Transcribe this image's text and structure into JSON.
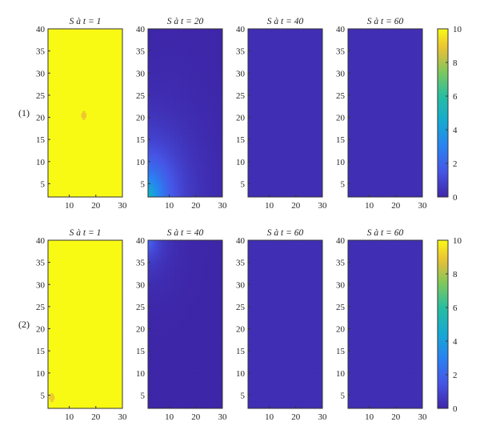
{
  "chart_data": [
    {
      "type": "heatmap",
      "row_label": "(1)",
      "colorbar": {
        "range": [
          0,
          10
        ],
        "ticks": [
          "0",
          "2",
          "4",
          "6",
          "8",
          "10"
        ],
        "colormap": "parula"
      },
      "panels": [
        {
          "title": "S à t = 1",
          "xlim": [
            2,
            30
          ],
          "ylim": [
            2,
            40
          ],
          "xticks": [
            "10",
            "20",
            "30"
          ],
          "yticks": [
            "5",
            "10",
            "15",
            "20",
            "25",
            "30",
            "35",
            "40"
          ],
          "field": {
            "kind": "uniform",
            "value": 10,
            "spots": [
              {
                "x": 15.5,
                "y": 20.5,
                "value": 9.0,
                "r": 0.9
              }
            ]
          }
        },
        {
          "title": "S à t = 20",
          "xlim": [
            2,
            30
          ],
          "ylim": [
            2,
            40
          ],
          "xticks": [
            "10",
            "20",
            "30"
          ],
          "yticks": [
            "5",
            "10",
            "15",
            "20",
            "25",
            "30",
            "35",
            "40"
          ],
          "field": {
            "kind": "decay_from_origin",
            "peak": 5.5,
            "decay": 7.5
          }
        },
        {
          "title": "S à t = 40",
          "xlim": [
            2,
            30
          ],
          "ylim": [
            2,
            40
          ],
          "xticks": [
            "10",
            "20",
            "30"
          ],
          "yticks": [
            "5",
            "10",
            "15",
            "20",
            "25",
            "30",
            "35",
            "40"
          ],
          "field": {
            "kind": "near_zero",
            "value": 0.3
          }
        },
        {
          "title": "S à t = 60",
          "xlim": [
            2,
            30
          ],
          "ylim": [
            2,
            40
          ],
          "xticks": [
            "10",
            "20",
            "30"
          ],
          "yticks": [
            "5",
            "10",
            "15",
            "20",
            "25",
            "30",
            "35",
            "40"
          ],
          "field": {
            "kind": "near_zero",
            "value": 0.3
          }
        }
      ]
    },
    {
      "type": "heatmap",
      "row_label": "(2)",
      "colorbar": {
        "range": [
          0,
          10
        ],
        "ticks": [
          "0",
          "2",
          "4",
          "6",
          "8",
          "10"
        ],
        "colormap": "parula"
      },
      "panels": [
        {
          "title": "S à t = 1",
          "xlim": [
            2,
            30
          ],
          "ylim": [
            2,
            40
          ],
          "xticks": [
            "10",
            "20",
            "30"
          ],
          "yticks": [
            "5",
            "10",
            "15",
            "20",
            "25",
            "30",
            "35",
            "40"
          ],
          "field": {
            "kind": "uniform",
            "value": 10,
            "spots": [
              {
                "x": 3.5,
                "y": 4.5,
                "value": 9.0,
                "r": 0.9
              }
            ]
          }
        },
        {
          "title": "S à t = 40",
          "xlim": [
            2,
            30
          ],
          "ylim": [
            2,
            40
          ],
          "xticks": [
            "10",
            "20",
            "30"
          ],
          "yticks": [
            "5",
            "10",
            "15",
            "20",
            "25",
            "30",
            "35",
            "40"
          ],
          "field": {
            "kind": "decay_from_top_left",
            "peak": 2.2,
            "decay": 4.5
          }
        },
        {
          "title": "S à t = 60",
          "xlim": [
            2,
            30
          ],
          "ylim": [
            2,
            40
          ],
          "xticks": [
            "10",
            "20",
            "30"
          ],
          "yticks": [
            "5",
            "10",
            "15",
            "20",
            "25",
            "30",
            "35",
            "40"
          ],
          "field": {
            "kind": "near_zero",
            "value": 0.3
          }
        },
        {
          "title": "S à t = 60",
          "xlim": [
            2,
            30
          ],
          "ylim": [
            2,
            40
          ],
          "xticks": [
            "10",
            "20",
            "30"
          ],
          "yticks": [
            "5",
            "10",
            "15",
            "20",
            "25",
            "30",
            "35",
            "40"
          ],
          "field": {
            "kind": "near_zero",
            "value": 0.3
          }
        }
      ]
    }
  ]
}
